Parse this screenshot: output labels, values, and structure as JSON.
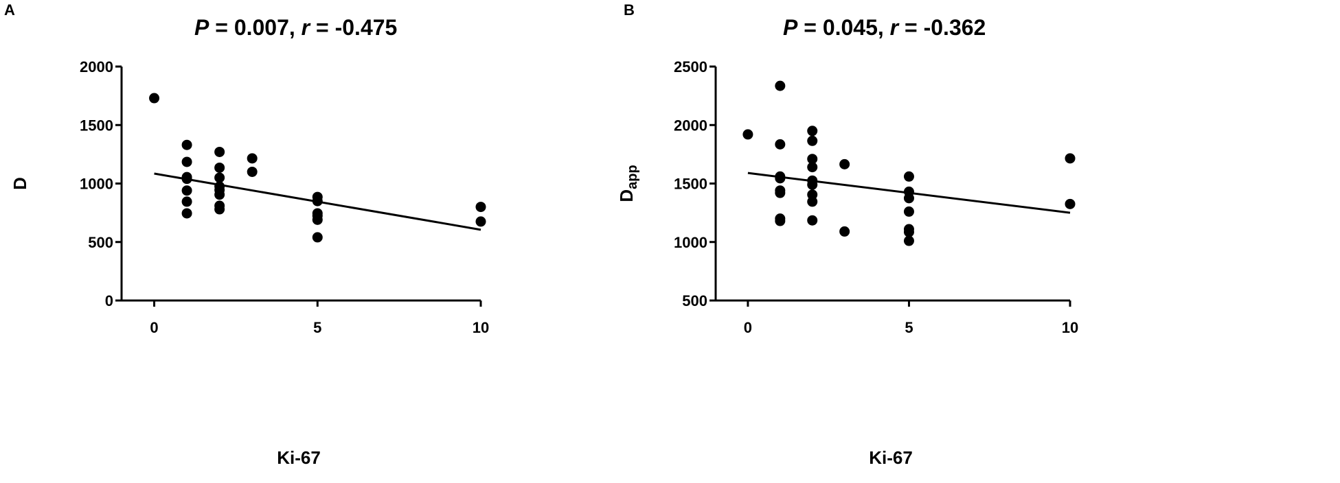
{
  "chart_data": [
    {
      "type": "scatter",
      "panel_label": "A",
      "title": {
        "p_label": "P",
        "p_value": " = 0.007, ",
        "r_label": "r",
        "r_value": " = -0.475"
      },
      "xlabel": "Ki-67",
      "ylabel": "D",
      "ylabel_sub": "",
      "xlim": [
        -1,
        10
      ],
      "ylim": [
        0,
        2000
      ],
      "xticks": [
        0,
        5,
        10
      ],
      "yticks": [
        0,
        500,
        1000,
        1500,
        2000
      ],
      "grid": false,
      "points": [
        [
          0,
          1730
        ],
        [
          1,
          1330
        ],
        [
          1,
          1185
        ],
        [
          1,
          1055
        ],
        [
          1,
          1040
        ],
        [
          1,
          940
        ],
        [
          1,
          845
        ],
        [
          1,
          745
        ],
        [
          2,
          1270
        ],
        [
          2,
          1135
        ],
        [
          2,
          1050
        ],
        [
          2,
          975
        ],
        [
          2,
          945
        ],
        [
          2,
          905
        ],
        [
          2,
          810
        ],
        [
          2,
          780
        ],
        [
          3,
          1215
        ],
        [
          3,
          1100
        ],
        [
          5,
          885
        ],
        [
          5,
          850
        ],
        [
          5,
          745
        ],
        [
          5,
          725
        ],
        [
          5,
          690
        ],
        [
          5,
          540
        ],
        [
          10,
          800
        ],
        [
          10,
          675
        ]
      ],
      "regression": {
        "x": [
          0,
          10
        ],
        "y": [
          1085,
          605
        ]
      }
    },
    {
      "type": "scatter",
      "panel_label": "B",
      "title": {
        "p_label": "P",
        "p_value": " = 0.045, ",
        "r_label": "r",
        "r_value": " = -0.362"
      },
      "xlabel": "Ki-67",
      "ylabel": "D",
      "ylabel_sub": "app",
      "xlim": [
        -1,
        10
      ],
      "ylim": [
        500,
        2500
      ],
      "xticks": [
        0,
        5,
        10
      ],
      "yticks": [
        500,
        1000,
        1500,
        2000,
        2500
      ],
      "grid": false,
      "points": [
        [
          0,
          1920
        ],
        [
          1,
          2335
        ],
        [
          1,
          1835
        ],
        [
          1,
          1560
        ],
        [
          1,
          1545
        ],
        [
          1,
          1440
        ],
        [
          1,
          1420
        ],
        [
          1,
          1200
        ],
        [
          1,
          1180
        ],
        [
          2,
          1950
        ],
        [
          2,
          1865
        ],
        [
          2,
          1710
        ],
        [
          2,
          1640
        ],
        [
          2,
          1525
        ],
        [
          2,
          1490
        ],
        [
          2,
          1405
        ],
        [
          2,
          1345
        ],
        [
          2,
          1185
        ],
        [
          3,
          1665
        ],
        [
          3,
          1090
        ],
        [
          5,
          1560
        ],
        [
          5,
          1430
        ],
        [
          5,
          1375
        ],
        [
          5,
          1260
        ],
        [
          5,
          1110
        ],
        [
          5,
          1085
        ],
        [
          5,
          1010
        ],
        [
          10,
          1715
        ],
        [
          10,
          1325
        ]
      ],
      "regression": {
        "x": [
          0,
          10
        ],
        "y": [
          1590,
          1250
        ]
      }
    }
  ]
}
